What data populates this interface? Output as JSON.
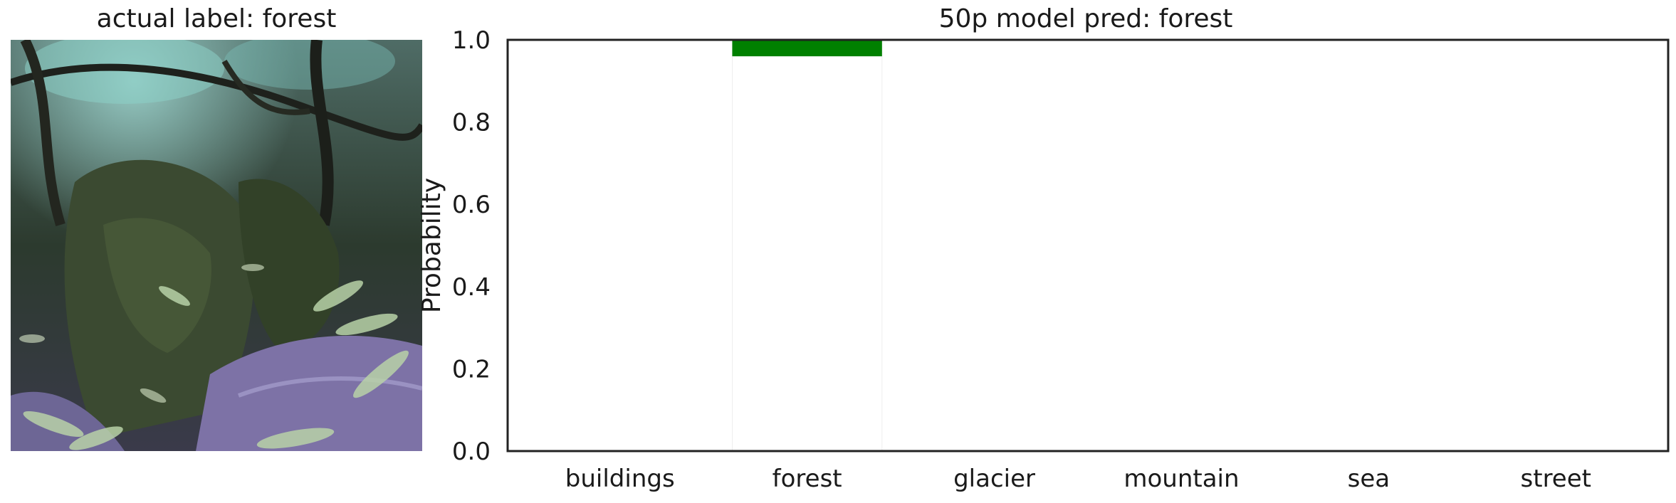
{
  "image_panel": {
    "title": "actual label: forest"
  },
  "chart_data": {
    "type": "bar",
    "title": "50p model pred: forest",
    "categories": [
      "buildings",
      "forest",
      "glacier",
      "mountain",
      "sea",
      "street"
    ],
    "values": [
      0.0,
      1.0,
      0.0,
      0.0,
      0.0,
      0.0
    ],
    "predicted_range": [
      0.96,
      1.0
    ],
    "xlabel": "",
    "ylabel": "Probability",
    "ylim": [
      0.0,
      1.0
    ],
    "yticks": [
      "0.0",
      "0.2",
      "0.4",
      "0.6",
      "0.8",
      "1.0"
    ],
    "grid": false,
    "colors": {
      "predicted": "#008000",
      "bar": "#ffffff",
      "axis": "#222222"
    }
  }
}
